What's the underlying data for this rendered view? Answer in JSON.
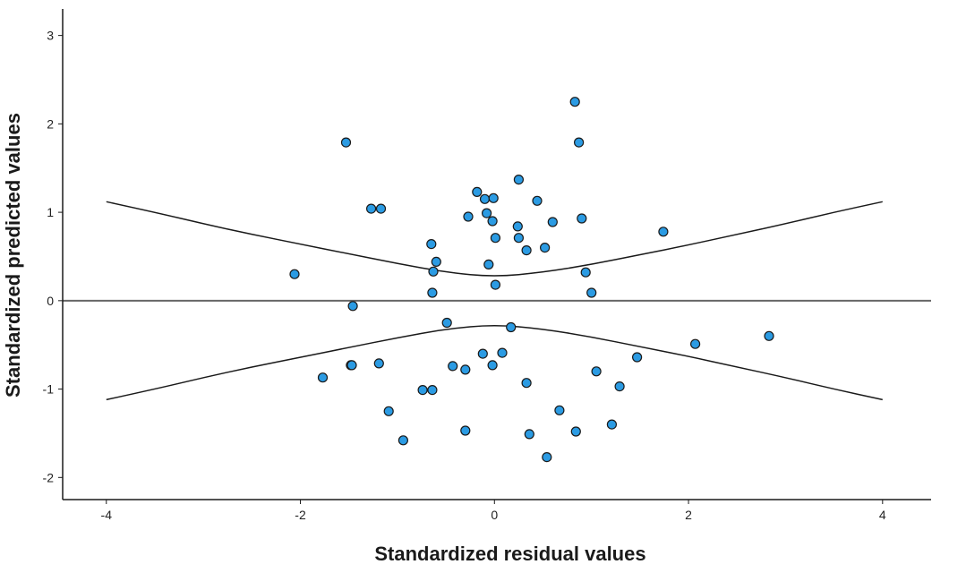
{
  "chart_data": {
    "type": "scatter",
    "title": "",
    "xlabel": "Standardized residual values",
    "ylabel": "Standardized predicted values",
    "xlim": [
      -4.45,
      4.5
    ],
    "ylim": [
      -2.25,
      3.3
    ],
    "x_ticks": [
      -4,
      -2,
      0,
      2,
      4
    ],
    "y_ticks": [
      -2,
      -1,
      0,
      1,
      2,
      3
    ],
    "grid": false,
    "legend": "none",
    "reference_line_y": 0,
    "point_color": "#2b9be3",
    "point_edge_color": "#1a1a1a",
    "curve_color": "#1a1a1a",
    "confidence_curves": {
      "upper": {
        "x": [
          -4,
          -3.5,
          -3,
          -2.5,
          -2,
          -1.5,
          -1,
          -0.5,
          0,
          0.5,
          1,
          1.5,
          2,
          2.5,
          3,
          3.5,
          4
        ],
        "y": [
          1.12,
          1.0,
          0.87,
          0.75,
          0.64,
          0.53,
          0.42,
          0.32,
          0.27,
          0.32,
          0.41,
          0.52,
          0.63,
          0.75,
          0.87,
          1.0,
          1.12
        ]
      },
      "lower": {
        "x": [
          -4,
          -3.5,
          -3,
          -2.5,
          -2,
          -1.5,
          -1,
          -0.5,
          0,
          0.5,
          1,
          1.5,
          2,
          2.5,
          3,
          3.5,
          4
        ],
        "y": [
          -1.12,
          -1.0,
          -0.87,
          -0.75,
          -0.64,
          -0.53,
          -0.42,
          -0.32,
          -0.27,
          -0.32,
          -0.41,
          -0.52,
          -0.63,
          -0.75,
          -0.87,
          -1.0,
          -1.12
        ]
      }
    },
    "points": [
      {
        "x": 0.83,
        "y": 2.25
      },
      {
        "x": 0.87,
        "y": 1.79
      },
      {
        "x": -1.53,
        "y": 1.79
      },
      {
        "x": 0.25,
        "y": 1.37
      },
      {
        "x": -0.18,
        "y": 1.23
      },
      {
        "x": -0.1,
        "y": 1.15
      },
      {
        "x": -0.01,
        "y": 1.16
      },
      {
        "x": 0.44,
        "y": 1.13
      },
      {
        "x": -1.27,
        "y": 1.04
      },
      {
        "x": -1.17,
        "y": 1.04
      },
      {
        "x": -0.27,
        "y": 0.95
      },
      {
        "x": -0.08,
        "y": 0.99
      },
      {
        "x": -0.02,
        "y": 0.9
      },
      {
        "x": 0.9,
        "y": 0.93
      },
      {
        "x": 0.6,
        "y": 0.89
      },
      {
        "x": 0.24,
        "y": 0.84
      },
      {
        "x": 1.74,
        "y": 0.78
      },
      {
        "x": 0.01,
        "y": 0.71
      },
      {
        "x": 0.25,
        "y": 0.71
      },
      {
        "x": -0.65,
        "y": 0.64
      },
      {
        "x": 0.52,
        "y": 0.6
      },
      {
        "x": 0.33,
        "y": 0.57
      },
      {
        "x": -0.6,
        "y": 0.44
      },
      {
        "x": -0.06,
        "y": 0.41
      },
      {
        "x": -0.63,
        "y": 0.33
      },
      {
        "x": -2.06,
        "y": 0.3
      },
      {
        "x": 0.94,
        "y": 0.32
      },
      {
        "x": 0.01,
        "y": 0.18
      },
      {
        "x": -0.64,
        "y": 0.09
      },
      {
        "x": 1.0,
        "y": 0.09
      },
      {
        "x": -1.46,
        "y": -0.06
      },
      {
        "x": -0.49,
        "y": -0.25
      },
      {
        "x": 0.17,
        "y": -0.3
      },
      {
        "x": 2.07,
        "y": -0.49
      },
      {
        "x": 2.83,
        "y": -0.4
      },
      {
        "x": 0.08,
        "y": -0.59
      },
      {
        "x": -0.12,
        "y": -0.6
      },
      {
        "x": 1.47,
        "y": -0.64
      },
      {
        "x": -1.48,
        "y": -0.73
      },
      {
        "x": -1.47,
        "y": -0.73
      },
      {
        "x": -1.19,
        "y": -0.71
      },
      {
        "x": -0.02,
        "y": -0.73
      },
      {
        "x": -0.43,
        "y": -0.74
      },
      {
        "x": -0.3,
        "y": -0.78
      },
      {
        "x": 1.05,
        "y": -0.8
      },
      {
        "x": -1.77,
        "y": -0.87
      },
      {
        "x": 0.33,
        "y": -0.93
      },
      {
        "x": 1.29,
        "y": -0.97
      },
      {
        "x": -0.74,
        "y": -1.01
      },
      {
        "x": -0.64,
        "y": -1.01
      },
      {
        "x": -1.09,
        "y": -1.25
      },
      {
        "x": 0.67,
        "y": -1.24
      },
      {
        "x": 1.21,
        "y": -1.4
      },
      {
        "x": -0.3,
        "y": -1.47
      },
      {
        "x": 0.84,
        "y": -1.48
      },
      {
        "x": 0.36,
        "y": -1.51
      },
      {
        "x": -0.94,
        "y": -1.58
      },
      {
        "x": 0.54,
        "y": -1.77
      }
    ]
  }
}
